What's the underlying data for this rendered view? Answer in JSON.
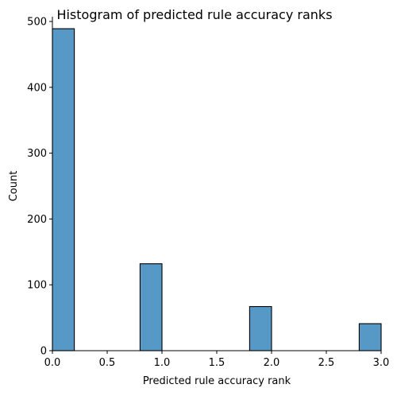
{
  "chart_data": {
    "type": "bar",
    "title": "Histogram of predicted rule accuracy ranks",
    "xlabel": "Predicted rule accuracy rank",
    "ylabel": "Count",
    "xlim": [
      0,
      3
    ],
    "ylim": [
      0,
      500
    ],
    "bins": [
      {
        "x_start": 0.0,
        "x_end": 0.2,
        "count": 489
      },
      {
        "x_start": 0.2,
        "x_end": 0.4,
        "count": 0
      },
      {
        "x_start": 0.4,
        "x_end": 0.6,
        "count": 0
      },
      {
        "x_start": 0.6,
        "x_end": 0.8,
        "count": 0
      },
      {
        "x_start": 0.8,
        "x_end": 1.0,
        "count": 132
      },
      {
        "x_start": 1.0,
        "x_end": 1.2,
        "count": 0
      },
      {
        "x_start": 1.2,
        "x_end": 1.4,
        "count": 0
      },
      {
        "x_start": 1.4,
        "x_end": 1.6,
        "count": 0
      },
      {
        "x_start": 1.6,
        "x_end": 1.8,
        "count": 0
      },
      {
        "x_start": 1.8,
        "x_end": 2.0,
        "count": 67
      },
      {
        "x_start": 2.0,
        "x_end": 2.2,
        "count": 0
      },
      {
        "x_start": 2.2,
        "x_end": 2.4,
        "count": 0
      },
      {
        "x_start": 2.4,
        "x_end": 2.6,
        "count": 0
      },
      {
        "x_start": 2.6,
        "x_end": 2.8,
        "count": 0
      },
      {
        "x_start": 2.8,
        "x_end": 3.0,
        "count": 41
      }
    ],
    "x_ticks": [
      "0.0",
      "0.5",
      "1.0",
      "1.5",
      "2.0",
      "2.5",
      "3.0"
    ],
    "x_tick_values": [
      0,
      0.5,
      1.0,
      1.5,
      2.0,
      2.5,
      3.0
    ],
    "y_ticks": [
      "0",
      "100",
      "200",
      "300",
      "400",
      "500"
    ],
    "y_tick_values": [
      0,
      100,
      200,
      300,
      400,
      500
    ],
    "grid": false,
    "bar_color": "#5699c6",
    "edge_color": "#000000"
  }
}
